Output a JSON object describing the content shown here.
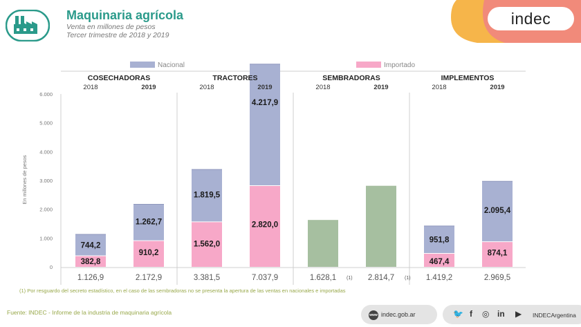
{
  "header": {
    "title": "Maquinaria agrícola",
    "subtitle_1": "Venta en millones de pesos",
    "subtitle_2": "Tercer trimestre de 2018 y 2019",
    "brand": "indec"
  },
  "colors": {
    "nacional": "#a8b1d2",
    "importado": "#f7a8c8",
    "total": "#a6bfa0",
    "accent": "#2a9a8a"
  },
  "footer": {
    "footnote": "(1) Por resguardo del secreto estadístico, en el caso de las sembradoras no se presenta la apertura de las ventas en nacionales e importadas",
    "source": "Fuente: INDEC - Informe de la industria de maquinaria agrícola",
    "web": "indec.gob.ar",
    "web_icon": "www-icon",
    "social_icons": [
      "twitter-icon",
      "facebook-icon",
      "instagram-icon",
      "linkedin-icon",
      "youtube-icon"
    ],
    "social_glyphs": [
      "🐦",
      "f",
      "◎",
      "in",
      "▶"
    ],
    "social_handle": "INDECArgentina"
  },
  "chart_data": {
    "type": "bar",
    "stacked": true,
    "ylabel": "En millones de pesos",
    "ylim": [
      0,
      6000
    ],
    "yticks": [
      "6.000",
      "5.000",
      "4.000",
      "3.000",
      "2.000",
      "1.000",
      "0"
    ],
    "legend": [
      {
        "name": "Nacional",
        "color": "#a8b1d2"
      },
      {
        "name": "Importado",
        "color": "#f7a8c8"
      }
    ],
    "legend_placement": "top",
    "grid": false,
    "groups": [
      {
        "name": "COSECHADORAS",
        "bars": [
          {
            "year": "2018",
            "importado": 382.8,
            "nacional": 744.2,
            "importado_label": "382,8",
            "nacional_label": "744,2",
            "total_label": "1.126,9"
          },
          {
            "year": "2019",
            "importado": 910.2,
            "nacional": 1262.7,
            "importado_label": "910,2",
            "nacional_label": "1.262,7",
            "total_label": "2.172,9"
          }
        ]
      },
      {
        "name": "TRACTORES",
        "bars": [
          {
            "year": "2018",
            "importado": 1562.0,
            "nacional": 1819.5,
            "importado_label": "1.562,0",
            "nacional_label": "1.819,5",
            "total_label": "3.381,5"
          },
          {
            "year": "2019",
            "importado": 2820.0,
            "nacional": 4217.9,
            "importado_label": "2.820,0",
            "nacional_label": "4.217,9",
            "total_label": "7.037,9"
          }
        ]
      },
      {
        "name": "SEMBRADORAS",
        "bars": [
          {
            "year": "2018",
            "total": 1628.1,
            "total_label": "1.628,1",
            "note": "(1)"
          },
          {
            "year": "2019",
            "total": 2814.7,
            "total_label": "2.814,7",
            "note": "(1)"
          }
        ]
      },
      {
        "name": "IMPLEMENTOS",
        "bars": [
          {
            "year": "2018",
            "importado": 467.4,
            "nacional": 951.8,
            "importado_label": "467,4",
            "nacional_label": "951,8",
            "total_label": "1.419,2"
          },
          {
            "year": "2019",
            "importado": 874.1,
            "nacional": 2095.4,
            "importado_label": "874,1",
            "nacional_label": "2.095,4",
            "total_label": "2.969,5"
          }
        ]
      }
    ]
  }
}
